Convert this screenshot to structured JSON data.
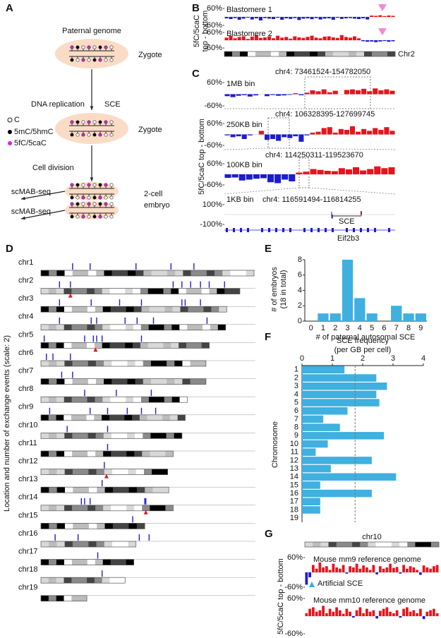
{
  "panel_labels": [
    "A",
    "B",
    "C",
    "D",
    "E",
    "F",
    "G"
  ],
  "diagram": {
    "title": "Paternal genome",
    "stage1": "Zygote",
    "step1": "DNA replication",
    "step1_event": "SCE",
    "stage2": "Zygote",
    "legend": [
      "C",
      "5mC/5hmC",
      "5fC/5caC"
    ],
    "step2": "Cell division",
    "method": [
      "scMAB-seq",
      "scMAB-seq"
    ],
    "stage3": [
      "2-cell",
      "embryo"
    ]
  },
  "chart_data": [
    {
      "type": "track",
      "ylabel": [
        "5fC/5caC",
        "top - bottom"
      ],
      "chromosome": "Chr2",
      "positive_color": "#e8141c",
      "negative_color": "#1c1ccf",
      "ylim": [
        -60,
        60
      ],
      "yticks": [
        {
          "value": 60,
          "label": "60%"
        },
        {
          "value": -60,
          "label": "-60%"
        }
      ],
      "series": [
        {
          "name": "Blastomere 1",
          "values": [
            -10,
            -15,
            -8,
            -20,
            -12,
            -5,
            -18,
            -10,
            -25,
            -8,
            -12,
            -15,
            -6,
            -20,
            -10,
            -14,
            -8,
            -22,
            -12,
            -10,
            -16,
            -8,
            -18,
            -12,
            -10,
            -20,
            -6,
            -14,
            -10,
            -8,
            -12,
            -15,
            -10,
            -18,
            10,
            8,
            12,
            6,
            10,
            8
          ]
        },
        {
          "name": "Blastomere 2",
          "values": [
            20,
            35,
            15,
            25,
            30,
            10,
            28,
            40,
            18,
            22,
            30,
            15,
            35,
            20,
            25,
            12,
            30,
            22,
            18,
            26,
            35,
            20,
            15,
            28,
            30,
            22,
            18,
            40,
            25,
            20,
            30,
            15,
            -8,
            -12,
            -10,
            -15,
            -10,
            -6,
            -12,
            -8
          ]
        }
      ]
    },
    {
      "type": "track",
      "ylabel": "5fC/5caC top - bottom",
      "positive_color": "#e8141c",
      "negative_color": "#1c1ccf",
      "gene": "Eif2b3",
      "annotation": "SCE",
      "series": [
        {
          "name": "1MB bin",
          "region": "chr4: 73461524-154782050",
          "ylim": [
            -60,
            60
          ],
          "yticks": [
            {
              "value": 60,
              "label": "60%"
            },
            {
              "value": -60,
              "label": "-60%"
            }
          ],
          "values": [
            -10,
            -15,
            -8,
            -5,
            -12,
            -6,
            0,
            -10,
            -4,
            -8,
            -6,
            -3,
            5,
            -5,
            8,
            20,
            15,
            25,
            10,
            18,
            0,
            22,
            25,
            20,
            28,
            15,
            30,
            20,
            25,
            18
          ]
        },
        {
          "name": "250KB bin",
          "region": "chr4: 106328395-127699745",
          "ylim": [
            -60,
            60
          ],
          "yticks": [
            {
              "value": 60,
              "label": "60%"
            },
            {
              "value": -60,
              "label": "-60%"
            }
          ],
          "values": [
            -5,
            -15,
            -10,
            -25,
            -5,
            0,
            20,
            -30,
            -25,
            -35,
            -15,
            -20,
            -10,
            -40,
            -5,
            10,
            15,
            35,
            40,
            10,
            30,
            25,
            45,
            15,
            30,
            20,
            35,
            25,
            40,
            20
          ]
        },
        {
          "name": "100KB bin",
          "region": "chr4: 114250311-119523670",
          "ylim": [
            -60,
            60
          ],
          "yticks": [
            {
              "value": 60,
              "label": "60%"
            },
            {
              "value": -60,
              "label": "-60%"
            }
          ],
          "values": [
            -20,
            -18,
            -35,
            -30,
            -25,
            -22,
            -45,
            -50,
            -30,
            -40,
            10,
            15,
            30,
            25,
            20,
            18,
            35,
            28,
            40,
            22,
            30,
            45,
            35,
            40
          ]
        },
        {
          "name": "1KB bin",
          "region": "chr4: 116591494-116814255",
          "ylim": [
            -100,
            100
          ],
          "yticks": [
            {
              "value": 100,
              "label": "100%"
            },
            {
              "value": -100,
              "label": "-100%"
            }
          ],
          "xlim": [
            116591494,
            116814255
          ],
          "x": [
            116732000,
            116770000
          ],
          "values": [
            -40,
            35
          ]
        }
      ]
    },
    {
      "type": "ideogram",
      "ylabel": "Location and number of exchange events (scale: 2)",
      "event_color": "#1c1ccf",
      "marked_color": "#e8141c",
      "chromosomes": [
        {
          "name": "chr1",
          "length": 195,
          "events": [
            29,
            45,
            87,
            119,
            140
          ],
          "marked": []
        },
        {
          "name": "chr2",
          "length": 182,
          "events": [
            17,
            27,
            121,
            129,
            137,
            146,
            154,
            168
          ],
          "marked": [
            27
          ]
        },
        {
          "name": "chr3",
          "length": 170,
          "events": [
            17,
            46,
            72,
            92,
            129,
            132,
            146
          ],
          "marked": []
        },
        {
          "name": "chr4",
          "length": 169,
          "events": [
            17,
            46,
            51,
            77,
            88,
            103,
            152
          ],
          "marked": []
        },
        {
          "name": "chr5",
          "length": 154,
          "events": [
            3,
            40,
            48,
            51,
            56,
            92
          ],
          "marked": [
            50
          ]
        },
        {
          "name": "chr6",
          "length": 151,
          "events": [
            5,
            11,
            27
          ],
          "marked": []
        },
        {
          "name": "chr7",
          "length": 151,
          "events": [
            19,
            29
          ],
          "marked": []
        },
        {
          "name": "chr8",
          "length": 134,
          "events": [
            40,
            69,
            101
          ],
          "marked": []
        },
        {
          "name": "chr9",
          "length": 132,
          "events": [
            8,
            45,
            61,
            79,
            92,
            105
          ],
          "marked": []
        },
        {
          "name": "chr10",
          "length": 129,
          "events": [
            24,
            61
          ],
          "marked": []
        },
        {
          "name": "chr11",
          "length": 121,
          "events": [
            61
          ],
          "marked": []
        },
        {
          "name": "chr12",
          "length": 116,
          "events": [
            58
          ],
          "marked": [
            60
          ]
        },
        {
          "name": "chr13",
          "length": 117,
          "events": [
            56
          ],
          "marked": []
        },
        {
          "name": "chr14",
          "length": 121,
          "events": [
            37,
            40,
            45,
            95,
            96
          ],
          "marked": [
            96
          ]
        },
        {
          "name": "chr15",
          "length": 95,
          "events": [
            84
          ],
          "marked": []
        },
        {
          "name": "chr16",
          "length": 87,
          "events": [
            13,
            34,
            90,
            99
          ],
          "marked": []
        },
        {
          "name": "chr17",
          "length": 85,
          "events": [
            52
          ],
          "marked": []
        },
        {
          "name": "chr18",
          "length": 77,
          "events": [
            56
          ],
          "marked": []
        },
        {
          "name": "chr19",
          "length": 42,
          "events": [],
          "marked": []
        }
      ]
    },
    {
      "type": "bar",
      "ylabel": [
        "# of embryos",
        "(18 in total)"
      ],
      "xlabel": "# of paternal autosomal SCE",
      "categories": [
        "0",
        "1",
        "2",
        "3",
        "4",
        "5",
        "6",
        "7",
        "8",
        "9"
      ],
      "values": [
        0,
        1,
        1,
        8,
        3,
        1,
        0,
        2,
        1,
        1
      ],
      "ylim": [
        0,
        8
      ],
      "yticks": [
        0,
        2,
        4,
        6,
        8
      ],
      "color": "#3fb0e0"
    },
    {
      "type": "hbar",
      "title": [
        "SCE frequency",
        "(per GB per cell)"
      ],
      "ylabel": "Chromosome",
      "categories": [
        "1",
        "2",
        "3",
        "4",
        "5",
        "6",
        "7",
        "8",
        "9",
        "10",
        "11",
        "12",
        "13",
        "14",
        "15",
        "16",
        "17",
        "18",
        "19"
      ],
      "values": [
        1.4,
        2.45,
        2.8,
        2.45,
        2.55,
        1.5,
        0.7,
        1.25,
        2.7,
        0.85,
        0.45,
        2.3,
        0.95,
        3.1,
        0.6,
        2.3,
        0.6,
        0.6,
        0
      ],
      "xlim": [
        0,
        4
      ],
      "xticks": [
        0,
        1,
        2,
        3,
        4
      ],
      "reference_line": 1.75,
      "color": "#3fb0e0"
    },
    {
      "type": "track",
      "ylabel": "5fC/5caC top - bottom",
      "chromosome": "chr10",
      "annotation": "Artificial SCE",
      "positive_color": "#e8141c",
      "negative_color": "#1c1ccf",
      "ylim": [
        -60,
        60
      ],
      "yticks": [
        {
          "value": 60,
          "label": "60%"
        },
        {
          "value": -60,
          "label": "-60%"
        }
      ],
      "series": [
        {
          "name": "Mouse mm9 reference genome",
          "values": [
            -50,
            -20,
            30,
            15,
            40,
            20,
            25,
            10,
            35,
            20,
            15,
            30,
            -5,
            25,
            20,
            35,
            15,
            28,
            20,
            10,
            30,
            -8,
            25,
            15,
            20,
            35,
            18,
            22,
            -5,
            30,
            15,
            25,
            20,
            10,
            -10,
            28,
            20,
            15,
            25,
            30
          ]
        },
        {
          "name": "Mouse mm10 reference genome",
          "values": [
            10,
            25,
            30,
            15,
            20,
            35,
            10,
            25,
            15,
            30,
            20,
            8,
            25,
            15,
            -5,
            20,
            30,
            10,
            25,
            15,
            20,
            -8,
            18,
            25,
            30,
            15,
            10,
            20,
            -5,
            25,
            30,
            15,
            20,
            10,
            25,
            -10,
            15,
            20,
            25,
            10
          ]
        }
      ]
    }
  ]
}
